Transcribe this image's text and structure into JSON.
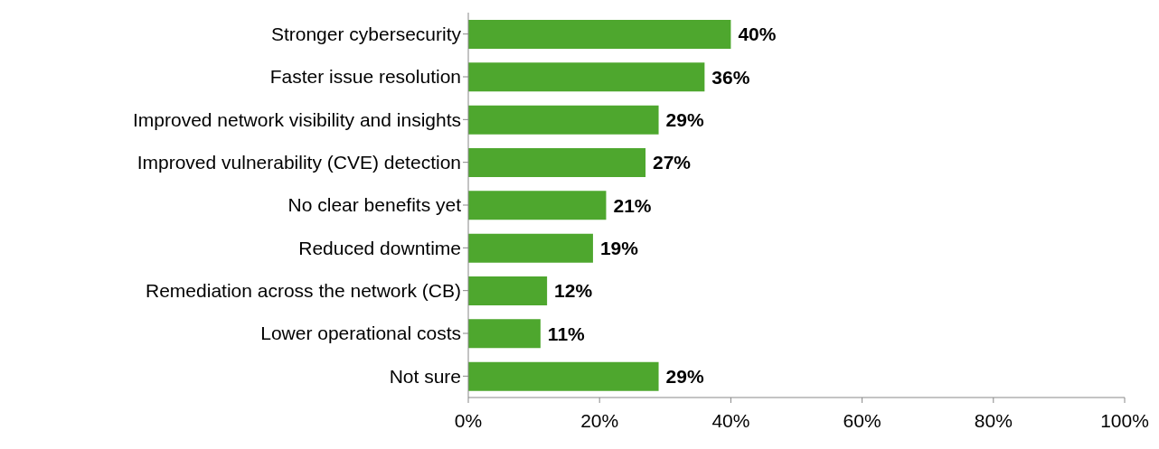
{
  "chart_data": {
    "type": "bar",
    "orientation": "horizontal",
    "categories": [
      "Stronger cybersecurity",
      "Faster issue resolution",
      "Improved network visibility and insights",
      "Improved vulnerability (CVE) detection",
      "No clear benefits yet",
      "Reduced downtime",
      "Remediation across the network (CB)",
      "Lower operational costs",
      "Not sure"
    ],
    "values": [
      40,
      36,
      29,
      27,
      21,
      19,
      12,
      11,
      29
    ],
    "value_labels": [
      "40%",
      "36%",
      "29%",
      "27%",
      "21%",
      "19%",
      "12%",
      "11%",
      "29%"
    ],
    "color": "#4ea72e",
    "xlim": [
      0,
      100
    ],
    "xticks": [
      {
        "value": 0,
        "label": "0%"
      },
      {
        "value": 20,
        "label": "20%"
      },
      {
        "value": 40,
        "label": "40%"
      },
      {
        "value": 60,
        "label": "60%"
      },
      {
        "value": 80,
        "label": "80%"
      },
      {
        "value": 100,
        "label": "100%"
      }
    ],
    "grid": false,
    "legend": false
  }
}
